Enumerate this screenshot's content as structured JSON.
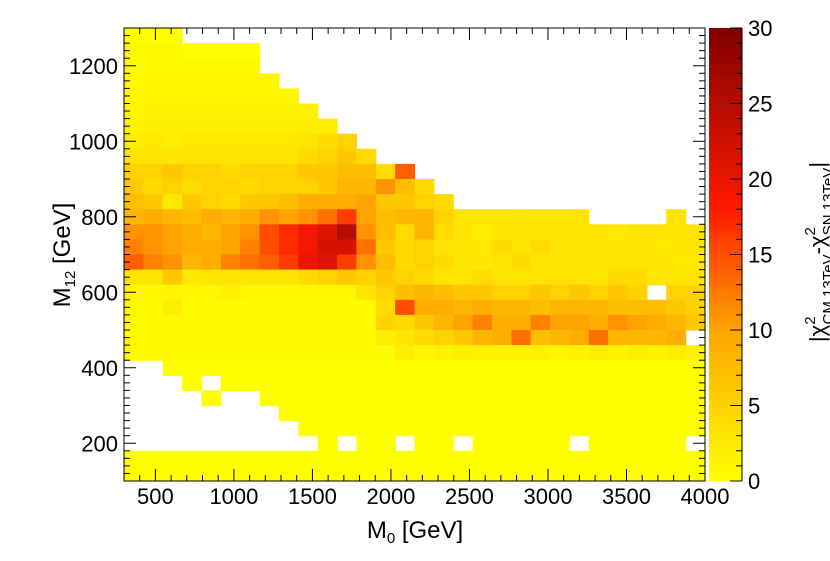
{
  "chart_data": {
    "type": "heatmap",
    "xlabel": "M",
    "xlabel_sub": "0",
    "xlabel_unit": " [GeV]",
    "ylabel": "M",
    "ylabel_sub": "12",
    "ylabel_unit": " [GeV]",
    "zlabel_parts": [
      "|χ",
      "2",
      "CM,13TeV",
      "-χ",
      "2",
      "SN,13TeV",
      "|"
    ],
    "xlim": [
      300,
      4000
    ],
    "ylim": [
      100,
      1300
    ],
    "zlim": [
      0,
      30
    ],
    "x_ticks": [
      500,
      1000,
      1500,
      2000,
      2500,
      3000,
      3500,
      4000
    ],
    "y_ticks": [
      200,
      400,
      600,
      800,
      1000,
      1200
    ],
    "z_ticks": [
      0,
      5,
      10,
      15,
      20,
      25,
      30
    ],
    "x_bin_edges_start": 300,
    "x_bin_width": 123.33,
    "y_bin_edges_start": 100,
    "y_bin_width": 40,
    "colors": {
      "low": "#ffff00",
      "mid": "#ff8000",
      "high": "#ff0000",
      "top": "#800000"
    },
    "z_rows_top_to_bottom": [
      "0,0,0,0,0,0,0,0,0,0,0,0,0,0,0,0,0,0,0,0,0,0,0,0,0,0,0,0,0,0",
      "0.5,0.5,0.5,0,0,0,0,0,0,0,0,0,0,0,0,0,0,0,0,0,0,0,0,0,0,0,0,0,0,0",
      "0.5,0.5,0.5,0.5,0.5,0.5,0.5,0,0,0,0,0,0,0,0,0,0,0,0,0,0,0,0,0,0,0,0,0,0,0",
      "0.5,1,1,1,1,1,1,1,0,0,0,0,0,0,0,0,0,0,0,0,0,0,0,0,0,0,0,0,0,0",
      "1,1,1,1,1,1,1,1,1,0,0,0,0,0,0,0,0,0,0,0,0,0,0,0,0,0,0,0,0,0",
      "1,1.5,1.5,1.5,1.5,1.5,1.5,1.5,1.5,1.5,0,0,0,0,0,0,0,0,0,0,0,0,0,0,0,0,0,0,0,0",
      "1.5,2,2,2,2,2,2,2,2,2,2,0,0,0,0,0,0,0,0,0,0,0,0,0,0,0,0,0,0,0",
      "2,2.5,2,2.5,2.5,2.5,2.5,2.5,2.5,3,4,5,0,0,0,0,0,0,0,0,0,0,0,0,0,0,0,0,0,0",
      "3,3,3,3,3,3,3,3,3,4,5,6,4,0,0,0,0,0,0,0,0,0,0,0,0,0,0,0,0,0",
      "5,5,6,5,5,4,5,5,5,6,6,7,7,4,14,0,0,0,0,0,0,0,0,0,0,0,0,0,0,0",
      "6,4,5,4,5,5,4,5,5,5,6,8,8,11,7,4,0,0,0,0,0,0,0,0,0,0,0,0,0,0",
      "7,6,2.5,6,5,4,6,6,7,9,9,9,10,6,6,5,4,0,0,0,0,0,0,0,0,0,0,0,0,0",
      "8,9,8,7,9,8,9,11,10,11,13,16,10,7,8,8,5,3,3,3,3,3,3,3,3,3,3,3,3,3",
      "11,11,10,9,8,10,11,15,17,19,21,25,11,7,4,8,4,3,2,3,3,3,3,2.5,3,2.5,3,3,2.5,3",
      "12,11,10,9,9,10,12,15,17,19,22,22,13,6,4,5,3,3,2.5,4,3,4,3,3,3,3,3,2.5,2.5,3",
      "14,12,11,8,9,12,13,14,16,20,21,16,11,7,4,5,4,3,2.5,3,4,3,3,3,3,3,3,3,2.5,2.5",
      "3,3,6,2.5,3,3,3,3,3,4,5,6,5,6,5,4,3,3,4,3,3,3,3,3,3,4,4,2.5,3,3",
      "1,1,1,1,1,1.5,1,1,1,1,1,1,3,5,7,8,7,6,6,5,5,6,5,6,5,6,5,0,5,5",
      "0.5,0.5,2,0.5,0.5,0.5,0.5,0.5,0.5,0.5,0.5,0.5,0.5,4,15,9,9,8,9,8,8,7,8,8,8,7,7,7,6,5",
      "0.5,0.5,0.5,0.5,0.5,0.5,0.5,0.5,0.5,0.5,0.5,0.5,0.5,5,4,6,8,10,12,9,9,12,10,10,9,11,10,9,8,6",
      "0.5,0.5,0.5,0.5,0.5,0.5,0.5,0.5,0.5,0.5,0.5,0.5,0.5,2,3,4,5,6,8,9,13,7,8,9,13,8,8,8,9,0.5",
      "0.5,0.5,0.5,0.5,0.5,0.5,0.5,0.5,0.5,0.5,0.5,0.5,0.5,0.5,2,1,1.5,2,1.5,1.5,1.5,1.5,1,1.5,2,1.5,2,1.5,2,1.5",
      "0,0,0,0,0,0,0,0,0,0,0,0,0,0,0,0,0,0,0,0,0,0,0,0,0,0,0,0,0,0",
      "0,0,0,0,0,0,0,0,0,0,0,0,0,0,0,0,0,0,0,0,0,0,0,0,0,0,0,0,0,0",
      "0,0,0,0,0,0,0,0,0,0,0,0,0,0,0,0,0,0,0,0,0,0,0,0,0,0,0,0,0,0",
      "0,0,0,0,0,0,0,0,0,0,0,0,0,0,0,0,0,0,0,0,0,0,0,0,0,0,0,0,0,0",
      "0,0,0,0,0,0,0,0,0,0,0,0,0,0,0,0,0,0,0,0,0,0,0,0,0,0,0,0,0,0",
      "0,0,0,0,0,0,0,0,0,0,0,0,0,0,0,0,0,0,0,0,0,0,0,0,0,0,0,0,0,0",
      "0,0,0,0,0,0,0,0,0,0,0,0,0,0,0,0,0,0,0,0,0,0,0,0,0,0,0,0,0,0",
      "0,0,0,0,0,0,0,0,0,0,0,0,0,0,0,0,0,0,0,0,0,0,0,0,0,0,0,0,0,0"
    ],
    "empty_cells": [
      [
        0,
        3
      ],
      [
        0,
        4
      ],
      [
        0,
        5
      ],
      [
        0,
        6
      ],
      [
        0,
        7
      ],
      [
        0,
        8
      ],
      [
        0,
        9
      ],
      [
        0,
        10
      ],
      [
        0,
        11
      ],
      [
        0,
        12
      ],
      [
        0,
        13
      ],
      [
        0,
        14
      ],
      [
        0,
        15
      ],
      [
        0,
        16
      ],
      [
        0,
        17
      ],
      [
        0,
        18
      ],
      [
        0,
        19
      ],
      [
        0,
        20
      ],
      [
        0,
        21
      ],
      [
        0,
        22
      ],
      [
        0,
        23
      ],
      [
        0,
        24
      ],
      [
        0,
        25
      ],
      [
        0,
        26
      ],
      [
        0,
        27
      ],
      [
        0,
        28
      ],
      [
        0,
        29
      ],
      [
        1,
        7
      ],
      [
        1,
        8
      ],
      [
        1,
        9
      ],
      [
        1,
        10
      ],
      [
        1,
        11
      ],
      [
        1,
        12
      ],
      [
        1,
        13
      ],
      [
        1,
        14
      ],
      [
        1,
        15
      ],
      [
        1,
        16
      ],
      [
        1,
        17
      ],
      [
        1,
        18
      ],
      [
        1,
        19
      ],
      [
        1,
        20
      ],
      [
        1,
        21
      ],
      [
        1,
        22
      ],
      [
        1,
        23
      ],
      [
        1,
        24
      ],
      [
        1,
        25
      ],
      [
        1,
        26
      ],
      [
        1,
        27
      ],
      [
        1,
        28
      ],
      [
        1,
        29
      ],
      [
        2,
        7
      ],
      [
        2,
        8
      ],
      [
        2,
        9
      ],
      [
        2,
        10
      ],
      [
        2,
        11
      ],
      [
        2,
        12
      ],
      [
        2,
        13
      ],
      [
        2,
        14
      ],
      [
        2,
        15
      ],
      [
        2,
        16
      ],
      [
        2,
        17
      ],
      [
        2,
        18
      ],
      [
        2,
        19
      ],
      [
        2,
        20
      ],
      [
        2,
        21
      ],
      [
        2,
        22
      ],
      [
        2,
        23
      ],
      [
        2,
        24
      ],
      [
        2,
        25
      ],
      [
        2,
        26
      ],
      [
        2,
        27
      ],
      [
        2,
        28
      ],
      [
        2,
        29
      ],
      [
        3,
        8
      ],
      [
        3,
        9
      ],
      [
        3,
        10
      ],
      [
        3,
        11
      ],
      [
        3,
        12
      ],
      [
        3,
        13
      ],
      [
        3,
        14
      ],
      [
        3,
        15
      ],
      [
        3,
        16
      ],
      [
        3,
        17
      ],
      [
        3,
        18
      ],
      [
        3,
        19
      ],
      [
        3,
        20
      ],
      [
        3,
        21
      ],
      [
        3,
        22
      ],
      [
        3,
        23
      ],
      [
        3,
        24
      ],
      [
        3,
        25
      ],
      [
        3,
        26
      ],
      [
        3,
        27
      ],
      [
        3,
        28
      ],
      [
        3,
        29
      ],
      [
        4,
        9
      ],
      [
        4,
        10
      ],
      [
        4,
        11
      ],
      [
        4,
        12
      ],
      [
        4,
        13
      ],
      [
        4,
        14
      ],
      [
        4,
        15
      ],
      [
        4,
        16
      ],
      [
        4,
        17
      ],
      [
        4,
        18
      ],
      [
        4,
        19
      ],
      [
        4,
        20
      ],
      [
        4,
        21
      ],
      [
        4,
        22
      ],
      [
        4,
        23
      ],
      [
        4,
        24
      ],
      [
        4,
        25
      ],
      [
        4,
        26
      ],
      [
        4,
        27
      ],
      [
        4,
        28
      ],
      [
        4,
        29
      ],
      [
        5,
        10
      ],
      [
        5,
        11
      ],
      [
        5,
        12
      ],
      [
        5,
        13
      ],
      [
        5,
        14
      ],
      [
        5,
        15
      ],
      [
        5,
        16
      ],
      [
        5,
        17
      ],
      [
        5,
        18
      ],
      [
        5,
        19
      ],
      [
        5,
        20
      ],
      [
        5,
        21
      ],
      [
        5,
        22
      ],
      [
        5,
        23
      ],
      [
        5,
        24
      ],
      [
        5,
        25
      ],
      [
        5,
        26
      ],
      [
        5,
        27
      ],
      [
        5,
        28
      ],
      [
        5,
        29
      ],
      [
        6,
        11
      ],
      [
        6,
        12
      ],
      [
        6,
        13
      ],
      [
        6,
        14
      ],
      [
        6,
        15
      ],
      [
        6,
        16
      ],
      [
        6,
        17
      ],
      [
        6,
        18
      ],
      [
        6,
        19
      ],
      [
        6,
        20
      ],
      [
        6,
        21
      ],
      [
        6,
        22
      ],
      [
        6,
        23
      ],
      [
        6,
        24
      ],
      [
        6,
        25
      ],
      [
        6,
        26
      ],
      [
        6,
        27
      ],
      [
        6,
        28
      ],
      [
        6,
        29
      ],
      [
        7,
        12
      ],
      [
        7,
        13
      ],
      [
        7,
        14
      ],
      [
        7,
        15
      ],
      [
        7,
        16
      ],
      [
        7,
        17
      ],
      [
        7,
        18
      ],
      [
        7,
        19
      ],
      [
        7,
        20
      ],
      [
        7,
        21
      ],
      [
        7,
        22
      ],
      [
        7,
        23
      ],
      [
        7,
        24
      ],
      [
        7,
        25
      ],
      [
        7,
        26
      ],
      [
        7,
        27
      ],
      [
        7,
        28
      ],
      [
        7,
        29
      ],
      [
        8,
        13
      ],
      [
        8,
        14
      ],
      [
        8,
        15
      ],
      [
        8,
        16
      ],
      [
        8,
        17
      ],
      [
        8,
        18
      ],
      [
        8,
        19
      ],
      [
        8,
        20
      ],
      [
        8,
        21
      ],
      [
        8,
        22
      ],
      [
        8,
        23
      ],
      [
        8,
        24
      ],
      [
        8,
        25
      ],
      [
        8,
        26
      ],
      [
        8,
        27
      ],
      [
        8,
        28
      ],
      [
        8,
        29
      ],
      [
        9,
        15
      ],
      [
        9,
        16
      ],
      [
        9,
        17
      ],
      [
        9,
        18
      ],
      [
        9,
        19
      ],
      [
        9,
        20
      ],
      [
        9,
        21
      ],
      [
        9,
        22
      ],
      [
        9,
        23
      ],
      [
        9,
        24
      ],
      [
        9,
        25
      ],
      [
        9,
        26
      ],
      [
        9,
        27
      ],
      [
        9,
        28
      ],
      [
        9,
        29
      ],
      [
        10,
        16
      ],
      [
        10,
        17
      ],
      [
        10,
        18
      ],
      [
        10,
        19
      ],
      [
        10,
        20
      ],
      [
        10,
        21
      ],
      [
        10,
        22
      ],
      [
        10,
        23
      ],
      [
        10,
        24
      ],
      [
        10,
        25
      ],
      [
        10,
        26
      ],
      [
        10,
        27
      ],
      [
        10,
        28
      ],
      [
        10,
        29
      ],
      [
        11,
        17
      ],
      [
        11,
        18
      ],
      [
        11,
        19
      ],
      [
        11,
        20
      ],
      [
        11,
        21
      ],
      [
        11,
        22
      ],
      [
        11,
        23
      ],
      [
        11,
        24
      ],
      [
        11,
        25
      ],
      [
        11,
        26
      ],
      [
        11,
        27
      ],
      [
        11,
        28
      ],
      [
        11,
        29
      ],
      [
        12,
        24
      ],
      [
        12,
        25
      ],
      [
        12,
        26
      ],
      [
        12,
        27
      ],
      [
        12,
        29
      ],
      [
        17,
        27
      ],
      [
        20,
        29
      ],
      [
        22,
        0
      ],
      [
        22,
        1
      ],
      [
        23,
        0
      ],
      [
        23,
        1
      ],
      [
        23,
        2
      ],
      [
        23,
        4
      ],
      [
        24,
        0
      ],
      [
        24,
        1
      ],
      [
        24,
        2
      ],
      [
        24,
        3
      ],
      [
        24,
        5
      ],
      [
        24,
        6
      ],
      [
        25,
        0
      ],
      [
        25,
        1
      ],
      [
        25,
        2
      ],
      [
        25,
        3
      ],
      [
        25,
        4
      ],
      [
        25,
        5
      ],
      [
        25,
        6
      ],
      [
        25,
        7
      ],
      [
        26,
        0
      ],
      [
        26,
        1
      ],
      [
        26,
        2
      ],
      [
        26,
        3
      ],
      [
        26,
        4
      ],
      [
        26,
        5
      ],
      [
        26,
        6
      ],
      [
        26,
        7
      ],
      [
        26,
        8
      ],
      [
        27,
        0
      ],
      [
        27,
        1
      ],
      [
        27,
        2
      ],
      [
        27,
        3
      ],
      [
        27,
        4
      ],
      [
        27,
        5
      ],
      [
        27,
        6
      ],
      [
        27,
        7
      ],
      [
        27,
        8
      ],
      [
        27,
        9
      ],
      [
        27,
        11
      ],
      [
        27,
        14
      ],
      [
        27,
        17
      ],
      [
        27,
        23
      ],
      [
        27,
        29
      ]
    ]
  }
}
